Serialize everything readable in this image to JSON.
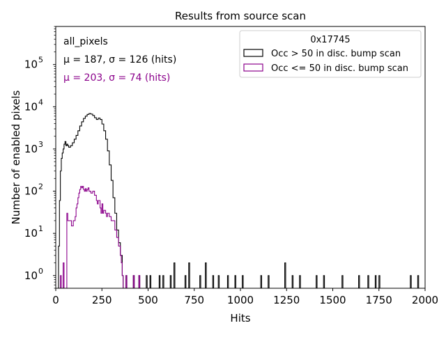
{
  "chart_data": {
    "type": "step-histogram",
    "title": "Results from source scan",
    "xlabel": "Hits",
    "ylabel": "Number of enabled pixels",
    "xlim": [
      0,
      2000
    ],
    "ylim": [
      0.5,
      800000
    ],
    "yscale": "log",
    "x_ticks": [
      0,
      250,
      500,
      750,
      1000,
      1250,
      1500,
      1750,
      2000
    ],
    "y_ticks": [
      {
        "value": 1,
        "label": "10^0"
      },
      {
        "value": 10,
        "label": "10^1"
      },
      {
        "value": 100,
        "label": "10^2"
      },
      {
        "value": 1000,
        "label": "10^3"
      },
      {
        "value": 10000,
        "label": "10^4"
      },
      {
        "value": 100000,
        "label": "10^5"
      }
    ],
    "grid": false,
    "legend": {
      "placement": "top-right",
      "title": "0x17745"
    },
    "annotations": {
      "label": "all_pixels",
      "stats_black": "μ = 187, σ = 126 (hits)",
      "stats_purple": "μ = 203, σ = 74 (hits)"
    },
    "series": [
      {
        "name": "Occ > 50 in disc. bump scan",
        "color": "#000000",
        "bins": [
          [
            10,
            0.5
          ],
          [
            15,
            5
          ],
          [
            20,
            60
          ],
          [
            25,
            300
          ],
          [
            30,
            600
          ],
          [
            35,
            800
          ],
          [
            40,
            1000
          ],
          [
            45,
            1300
          ],
          [
            50,
            1500
          ],
          [
            55,
            1200
          ],
          [
            60,
            1300
          ],
          [
            65,
            1200
          ],
          [
            70,
            1100
          ],
          [
            80,
            1200
          ],
          [
            90,
            1400
          ],
          [
            100,
            1700
          ],
          [
            110,
            2100
          ],
          [
            120,
            2700
          ],
          [
            130,
            3500
          ],
          [
            140,
            4400
          ],
          [
            150,
            5300
          ],
          [
            160,
            6000
          ],
          [
            170,
            6600
          ],
          [
            180,
            6900
          ],
          [
            190,
            6700
          ],
          [
            200,
            6200
          ],
          [
            210,
            5500
          ],
          [
            220,
            5000
          ],
          [
            230,
            5400
          ],
          [
            240,
            5000
          ],
          [
            250,
            3900
          ],
          [
            260,
            2700
          ],
          [
            270,
            1700
          ],
          [
            280,
            900
          ],
          [
            290,
            420
          ],
          [
            300,
            180
          ],
          [
            310,
            70
          ],
          [
            320,
            30
          ],
          [
            330,
            12
          ],
          [
            340,
            6
          ],
          [
            350,
            3
          ],
          [
            360,
            1
          ],
          [
            365,
            0.5
          ],
          [
            380,
            1
          ],
          [
            385,
            0.5
          ],
          [
            420,
            1
          ],
          [
            425,
            0.5
          ],
          [
            450,
            1
          ],
          [
            455,
            0.5
          ],
          [
            490,
            1
          ],
          [
            495,
            0.5
          ],
          [
            510,
            1
          ],
          [
            515,
            0.5
          ],
          [
            560,
            1
          ],
          [
            565,
            0.5
          ],
          [
            580,
            1
          ],
          [
            585,
            0.5
          ],
          [
            620,
            1
          ],
          [
            625,
            0.5
          ],
          [
            640,
            2
          ],
          [
            645,
            0.5
          ],
          [
            700,
            1
          ],
          [
            705,
            0.5
          ],
          [
            720,
            2
          ],
          [
            725,
            0.5
          ],
          [
            780,
            1
          ],
          [
            785,
            0.5
          ],
          [
            810,
            2
          ],
          [
            815,
            0.5
          ],
          [
            850,
            1
          ],
          [
            855,
            0.5
          ],
          [
            880,
            1
          ],
          [
            885,
            0.5
          ],
          [
            930,
            1
          ],
          [
            935,
            0.5
          ],
          [
            970,
            1
          ],
          [
            975,
            0.5
          ],
          [
            1010,
            1
          ],
          [
            1015,
            0.5
          ],
          [
            1110,
            1
          ],
          [
            1115,
            0.5
          ],
          [
            1150,
            1
          ],
          [
            1155,
            0.5
          ],
          [
            1240,
            2
          ],
          [
            1245,
            0.5
          ],
          [
            1280,
            1
          ],
          [
            1285,
            0.5
          ],
          [
            1320,
            1
          ],
          [
            1325,
            0.5
          ],
          [
            1410,
            1
          ],
          [
            1415,
            0.5
          ],
          [
            1450,
            1
          ],
          [
            1455,
            0.5
          ],
          [
            1550,
            1
          ],
          [
            1555,
            0.5
          ],
          [
            1640,
            1
          ],
          [
            1645,
            0.5
          ],
          [
            1690,
            1
          ],
          [
            1695,
            0.5
          ],
          [
            1730,
            1
          ],
          [
            1735,
            0.5
          ],
          [
            1750,
            1
          ],
          [
            1755,
            0.5
          ],
          [
            1920,
            1
          ],
          [
            1925,
            0.5
          ],
          [
            1960,
            1
          ],
          [
            1965,
            0.5
          ]
        ]
      },
      {
        "name": "Occ <= 50 in disc. bump scan",
        "color": "#8b008b",
        "bins": [
          [
            20,
            0.5
          ],
          [
            25,
            1
          ],
          [
            30,
            0.5
          ],
          [
            40,
            2
          ],
          [
            45,
            0.5
          ],
          [
            60,
            30
          ],
          [
            65,
            20
          ],
          [
            75,
            20
          ],
          [
            85,
            15
          ],
          [
            95,
            20
          ],
          [
            105,
            25
          ],
          [
            110,
            40
          ],
          [
            115,
            50
          ],
          [
            120,
            70
          ],
          [
            125,
            90
          ],
          [
            130,
            110
          ],
          [
            135,
            130
          ],
          [
            140,
            120
          ],
          [
            145,
            130
          ],
          [
            150,
            110
          ],
          [
            155,
            100
          ],
          [
            160,
            115
          ],
          [
            165,
            100
          ],
          [
            170,
            110
          ],
          [
            175,
            120
          ],
          [
            180,
            100
          ],
          [
            190,
            90
          ],
          [
            200,
            100
          ],
          [
            210,
            80
          ],
          [
            220,
            60
          ],
          [
            225,
            50
          ],
          [
            230,
            60
          ],
          [
            240,
            40
          ],
          [
            245,
            30
          ],
          [
            250,
            50
          ],
          [
            255,
            30
          ],
          [
            260,
            35
          ],
          [
            270,
            30
          ],
          [
            275,
            25
          ],
          [
            280,
            30
          ],
          [
            290,
            25
          ],
          [
            300,
            20
          ],
          [
            310,
            20
          ],
          [
            320,
            12
          ],
          [
            330,
            8
          ],
          [
            340,
            5
          ],
          [
            350,
            3
          ],
          [
            355,
            2
          ],
          [
            360,
            1
          ],
          [
            365,
            0.5
          ],
          [
            380,
            1
          ],
          [
            385,
            0.5
          ],
          [
            420,
            1
          ],
          [
            425,
            0.5
          ],
          [
            450,
            1
          ],
          [
            455,
            0.5
          ]
        ]
      }
    ]
  }
}
